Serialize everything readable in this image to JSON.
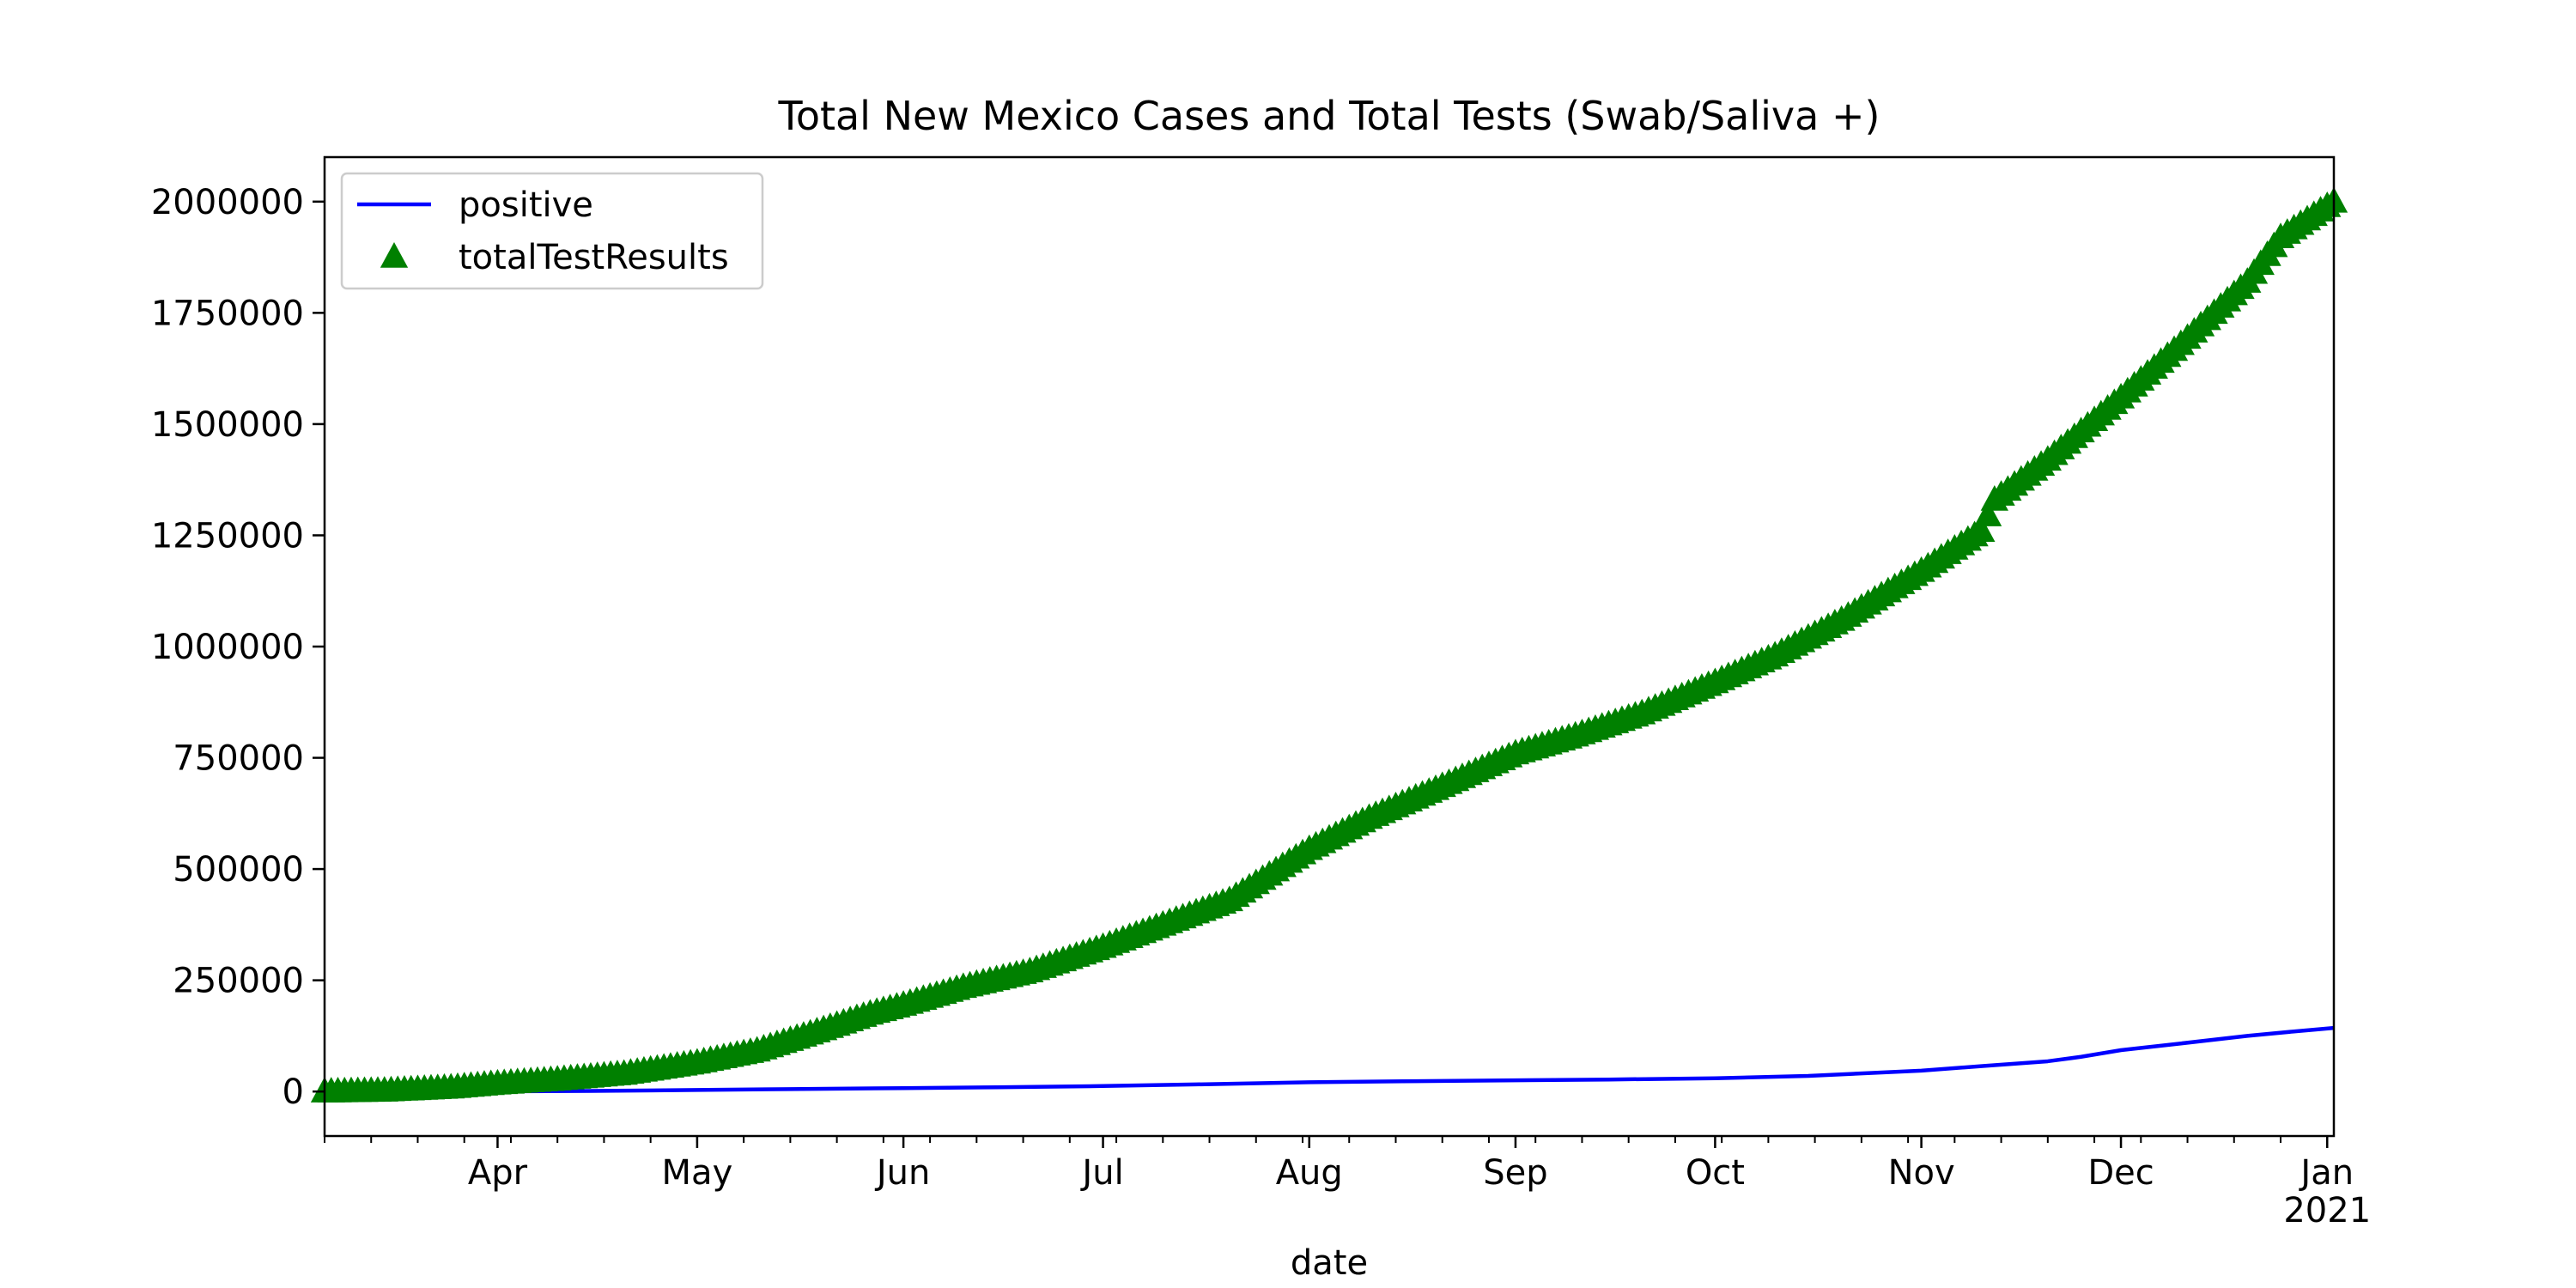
{
  "chart_data": {
    "type": "line",
    "title": "Total New Mexico Cases and Total Tests (Swab/Saliva +)",
    "xlabel": "date",
    "ylabel": "",
    "x_range": [
      "2020-03-06",
      "2021-01-02"
    ],
    "ylim": [
      -100000,
      2100000
    ],
    "grid": false,
    "legend_position": "top-left",
    "x_ticks": [
      {
        "date": "2020-04-01",
        "label": "Apr"
      },
      {
        "date": "2020-05-01",
        "label": "May"
      },
      {
        "date": "2020-06-01",
        "label": "Jun"
      },
      {
        "date": "2020-07-01",
        "label": "Jul"
      },
      {
        "date": "2020-08-01",
        "label": "Aug"
      },
      {
        "date": "2020-09-01",
        "label": "Sep"
      },
      {
        "date": "2020-10-01",
        "label": "Oct"
      },
      {
        "date": "2020-11-01",
        "label": "Nov"
      },
      {
        "date": "2020-12-01",
        "label": "Dec"
      },
      {
        "date": "2021-01-01",
        "label": "Jan",
        "sublabel": "2021"
      }
    ],
    "y_ticks": [
      0,
      250000,
      500000,
      750000,
      1000000,
      1250000,
      1500000,
      1750000,
      2000000
    ],
    "series": [
      {
        "name": "positive",
        "style": "line",
        "color": "#0000ff",
        "points": [
          [
            "2020-03-06",
            0
          ],
          [
            "2020-03-20",
            40
          ],
          [
            "2020-04-01",
            315
          ],
          [
            "2020-04-15",
            1400
          ],
          [
            "2020-05-01",
            3400
          ],
          [
            "2020-05-15",
            5500
          ],
          [
            "2020-06-01",
            7700
          ],
          [
            "2020-06-15",
            9500
          ],
          [
            "2020-07-01",
            12300
          ],
          [
            "2020-07-15",
            16000
          ],
          [
            "2020-08-01",
            20800
          ],
          [
            "2020-08-15",
            23000
          ],
          [
            "2020-09-01",
            25300
          ],
          [
            "2020-09-15",
            27000
          ],
          [
            "2020-10-01",
            29800
          ],
          [
            "2020-10-15",
            35000
          ],
          [
            "2020-11-01",
            47000
          ],
          [
            "2020-11-10",
            57000
          ],
          [
            "2020-11-20",
            68000
          ],
          [
            "2020-11-25",
            78000
          ],
          [
            "2020-12-01",
            93000
          ],
          [
            "2020-12-10",
            108000
          ],
          [
            "2020-12-20",
            125000
          ],
          [
            "2020-12-27",
            135000
          ],
          [
            "2021-01-02",
            143000
          ]
        ]
      },
      {
        "name": "totalTestResults",
        "style": "triangle-marker",
        "color": "#008000",
        "points": [
          [
            "2020-03-06",
            0
          ],
          [
            "2020-03-15",
            2000
          ],
          [
            "2020-03-25",
            9000
          ],
          [
            "2020-04-01",
            18000
          ],
          [
            "2020-04-10",
            27000
          ],
          [
            "2020-04-20",
            40000
          ],
          [
            "2020-05-01",
            65000
          ],
          [
            "2020-05-10",
            92000
          ],
          [
            "2020-05-20",
            140000
          ],
          [
            "2020-05-27",
            175000
          ],
          [
            "2020-06-01",
            195000
          ],
          [
            "2020-06-10",
            235000
          ],
          [
            "2020-06-20",
            270000
          ],
          [
            "2020-07-01",
            325000
          ],
          [
            "2020-07-10",
            375000
          ],
          [
            "2020-07-20",
            430000
          ],
          [
            "2020-08-01",
            545000
          ],
          [
            "2020-08-10",
            615000
          ],
          [
            "2020-08-20",
            680000
          ],
          [
            "2020-09-01",
            760000
          ],
          [
            "2020-09-10",
            800000
          ],
          [
            "2020-09-20",
            850000
          ],
          [
            "2020-10-01",
            920000
          ],
          [
            "2020-10-10",
            980000
          ],
          [
            "2020-10-20",
            1060000
          ],
          [
            "2020-11-01",
            1170000
          ],
          [
            "2020-11-10",
            1260000
          ],
          [
            "2020-11-12",
            1330000
          ],
          [
            "2020-11-20",
            1420000
          ],
          [
            "2020-12-01",
            1560000
          ],
          [
            "2020-12-10",
            1680000
          ],
          [
            "2020-12-20",
            1820000
          ],
          [
            "2020-12-25",
            1920000
          ],
          [
            "2021-01-02",
            2000000
          ]
        ]
      }
    ]
  }
}
